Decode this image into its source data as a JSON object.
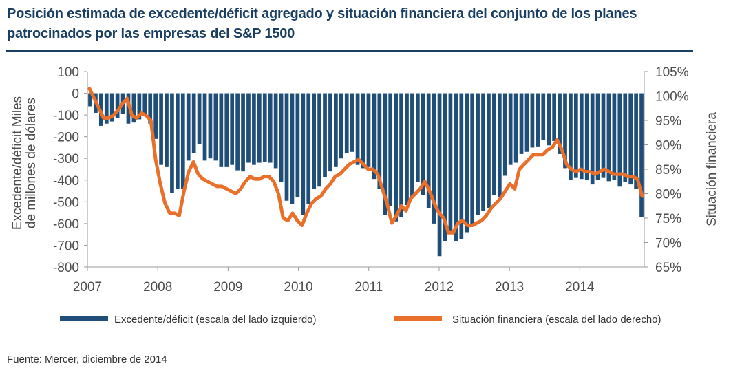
{
  "title": "Posición estimada de excedente/déficit agregado y situación financiera del conjunto de los planes patrocinados por las empresas del S&P 1500",
  "source": "Fuente: Mercer, diciembre de 2014",
  "colors": {
    "title": "#1a3f62",
    "bars": "#1f4e79",
    "line": "#e8702a",
    "axis": "#999999",
    "text": "#4d4d4d"
  },
  "chart_data": {
    "type": "bar+line",
    "title": "Posición estimada de excedente/déficit agregado y situación financiera del conjunto de los planes patrocinados por las empresas del S&P 1500",
    "x_start": "2007-01",
    "x_end": "2014-11",
    "x_ticks": [
      "2007",
      "2008",
      "2009",
      "2010",
      "2011",
      "2012",
      "2013",
      "2014"
    ],
    "left_axis": {
      "label": "Excedente/déficit Miles de millones de dólares",
      "ticks": [
        "100",
        "0",
        "-100",
        "-200",
        "-300",
        "-400",
        "-500",
        "-600",
        "-700",
        "-800"
      ],
      "range": [
        -800,
        100
      ]
    },
    "right_axis": {
      "label": "Situación financiera",
      "ticks": [
        "105%",
        "100%",
        "95%",
        "90%",
        "85%",
        "80%",
        "75%",
        "70%",
        "65%"
      ],
      "range": [
        65,
        105
      ]
    },
    "series": [
      {
        "name": "Excedente/déficit (escala del lado izquierdo)",
        "kind": "bar",
        "axis": "left",
        "values": [
          -60,
          -90,
          -150,
          -140,
          -130,
          -115,
          -95,
          -140,
          -135,
          -120,
          -95,
          -140,
          -210,
          -330,
          -340,
          -460,
          -440,
          -440,
          -310,
          -275,
          -235,
          -310,
          -300,
          -310,
          -340,
          -340,
          -330,
          -355,
          -360,
          -320,
          -330,
          -320,
          -315,
          -320,
          -345,
          -410,
          -495,
          -510,
          -480,
          -560,
          -510,
          -440,
          -430,
          -385,
          -360,
          -340,
          -300,
          -275,
          -270,
          -330,
          -345,
          -340,
          -395,
          -440,
          -560,
          -520,
          -590,
          -570,
          -515,
          -480,
          -410,
          -470,
          -530,
          -600,
          -750,
          -680,
          -640,
          -680,
          -670,
          -640,
          -610,
          -560,
          -540,
          -530,
          -470,
          -480,
          -380,
          -330,
          -320,
          -280,
          -270,
          -250,
          -245,
          -215,
          -240,
          -220,
          -280,
          -345,
          -400,
          -390,
          -395,
          -400,
          -420,
          -400,
          -390,
          -405,
          -400,
          -430,
          -410,
          -420,
          -440,
          -570
        ]
      },
      {
        "name": "Situación financiera (escala del lado derecho)",
        "kind": "line",
        "axis": "right",
        "values": [
          101.5,
          99.5,
          97.5,
          95.5,
          95.5,
          96,
          97,
          98.5,
          99.5,
          96,
          95.5,
          96.5,
          96,
          95,
          87,
          82,
          78,
          76,
          76,
          75.5,
          80.5,
          84.5,
          86.5,
          84,
          83,
          82.5,
          82,
          81.5,
          81.5,
          81,
          80.5,
          80,
          81,
          82.5,
          83.5,
          83,
          83,
          83.5,
          83.5,
          82.5,
          80,
          75,
          74.5,
          76,
          74.5,
          73.5,
          76,
          78,
          79,
          79.5,
          81,
          82,
          83.5,
          84,
          85,
          86,
          86.5,
          87,
          86,
          85,
          85,
          84,
          81,
          78,
          74,
          75.5,
          77.5,
          76.5,
          79,
          80,
          81,
          82.5,
          80.5,
          78,
          76,
          75,
          72,
          72,
          74,
          74.5,
          73.5,
          73.5,
          74,
          74.5,
          75.5,
          77,
          78,
          79,
          80.5,
          82,
          81,
          85,
          86,
          87,
          88,
          88,
          88,
          89,
          89.5,
          91,
          89,
          86,
          85,
          84.5,
          85,
          84.5,
          84.5,
          84,
          84.5,
          85,
          84.5,
          84,
          84,
          84,
          83.5,
          83.5,
          83,
          79.5
        ]
      }
    ],
    "legend_position": "bottom"
  }
}
